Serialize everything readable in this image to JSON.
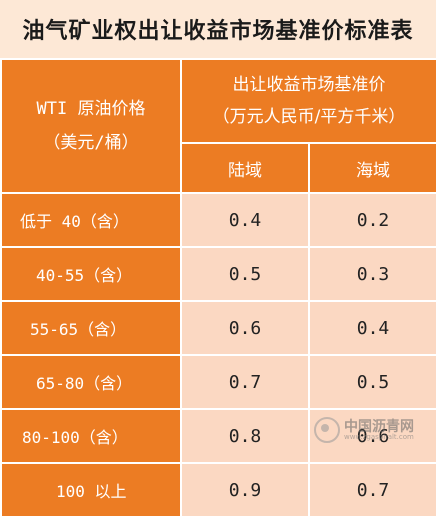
{
  "title": "油气矿业权出让收益市场基准价标准表",
  "header": {
    "left_line1": "WTI 原油价格",
    "left_line2": "（美元/桶）",
    "right_line1": "出让收益市场基准价",
    "right_line2": "（万元人民币/平方千米）",
    "col_land": "陆域",
    "col_sea": "海域"
  },
  "rows": [
    {
      "price": "低于 40（含）",
      "land": "0.4",
      "sea": "0.2"
    },
    {
      "price": "40-55（含）",
      "land": "0.5",
      "sea": "0.3"
    },
    {
      "price": "55-65（含）",
      "land": "0.6",
      "sea": "0.4"
    },
    {
      "price": "65-80（含）",
      "land": "0.7",
      "sea": "0.5"
    },
    {
      "price": "80-100（含）",
      "land": "0.8",
      "sea": "0.6"
    },
    {
      "price": "100 以上",
      "land": "0.9",
      "sea": "0.7"
    }
  ],
  "watermark": {
    "name": "中国沥青网",
    "url": "www.zgasphalt.com"
  },
  "colors": {
    "header_bg": "#ec7c23",
    "cell_bg": "#fbd8c2",
    "title_bg": "#fde8d6"
  }
}
